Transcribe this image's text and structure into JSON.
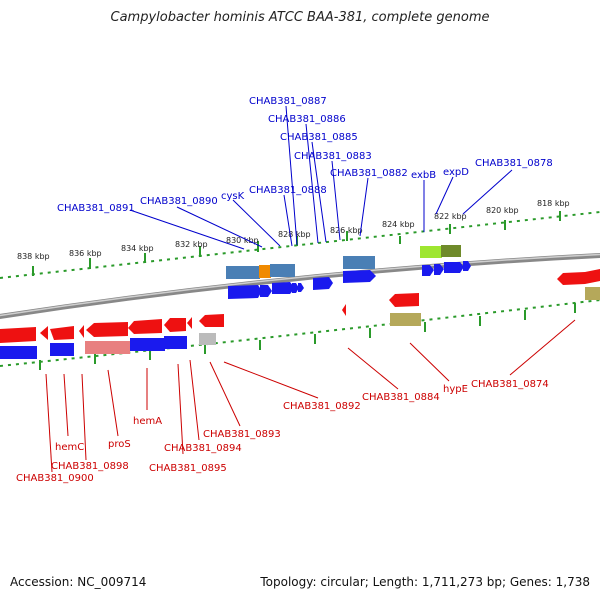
{
  "title": "Campylobacter hominis ATCC BAA-381, complete genome",
  "footer": {
    "accession": "Accession: NC_009714",
    "stats": "Topology: circular; Length: 1,711,273 bp; Genes: 1,738"
  },
  "scale_ticks": [
    "838 kbp",
    "836 kbp",
    "834 kbp",
    "832 kbp",
    "830 kbp",
    "828 kbp",
    "826 kbp",
    "824 kbp",
    "822 kbp",
    "820 kbp",
    "818 kbp"
  ],
  "top_labels": [
    "CHAB381_0887",
    "CHAB381_0886",
    "CHAB381_0885",
    "CHAB381_0883",
    "CHAB381_0882",
    "CHAB381_0888",
    "CHAB381_0878",
    "CHAB381_0891",
    "CHAB381_0890",
    "cysK",
    "exbB",
    "expD"
  ],
  "bottom_labels": [
    "CHAB381_0874",
    "CHAB381_0884",
    "hypE",
    "CHAB381_0892",
    "CHAB381_0893",
    "CHAB381_0894",
    "CHAB381_0895",
    "hemA",
    "proS",
    "hemC",
    "CHAB381_0898",
    "CHAB381_0900"
  ],
  "colors": {
    "forward_gene": "#1a1aee",
    "reverse_gene": "#ee1111",
    "cog_steelblue": "#4a7fb5",
    "cog_orange": "#f08a00",
    "cog_green": "#9ee630",
    "cog_olive": "#6f8a2a",
    "cog_khaki": "#b5a85a",
    "cog_pink": "#e88080",
    "cog_grey": "#bbbbbb",
    "backbone": "#888888",
    "tick": "#2a9a2a"
  }
}
